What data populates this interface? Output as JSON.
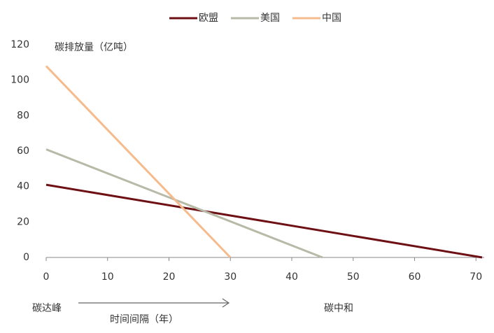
{
  "chart_data": {
    "type": "line",
    "y_label": "碳排放量（亿吨）",
    "x_annotations": {
      "start": "碳达峰",
      "middle": "时间间隔（年）",
      "end": "碳中和"
    },
    "series": [
      {
        "name": "欧盟",
        "color": "#6e1013",
        "x": [
          0,
          71
        ],
        "values": [
          41,
          0
        ]
      },
      {
        "name": "美国",
        "color": "#b6baa7",
        "x": [
          0,
          45
        ],
        "values": [
          61,
          0
        ]
      },
      {
        "name": "中国",
        "color": "#f6bb8c",
        "x": [
          0,
          30
        ],
        "values": [
          108,
          0
        ]
      }
    ],
    "xlim": [
      0,
      71
    ],
    "xticks": [
      0,
      10,
      20,
      30,
      40,
      50,
      60,
      70
    ],
    "ylim": [
      0,
      120
    ],
    "yticks": [
      0,
      20,
      40,
      60,
      80,
      100,
      120
    ]
  }
}
